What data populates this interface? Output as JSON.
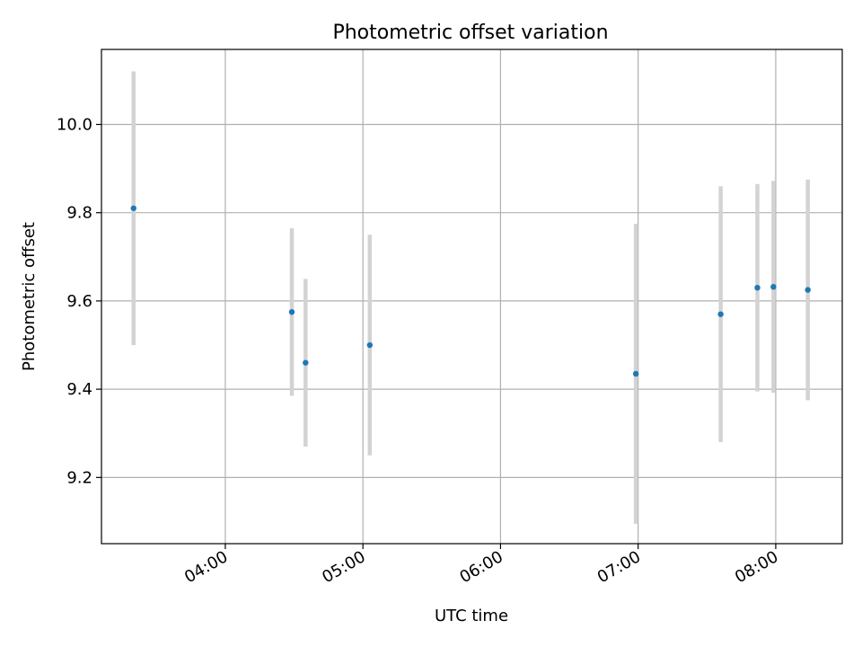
{
  "chart_data": {
    "type": "scatter",
    "title": "Photometric offset variation",
    "xlabel": "UTC time",
    "ylabel": "Photometric offset",
    "x_ticks": [
      "04:00",
      "05:00",
      "06:00",
      "07:00",
      "08:00"
    ],
    "y_ticks": [
      "9.2",
      "9.4",
      "9.6",
      "9.8",
      "10.0"
    ],
    "xlim": [
      "03:06",
      "08:29"
    ],
    "ylim": [
      9.05,
      10.17
    ],
    "grid": true,
    "colors": {
      "point": "#1f77b4",
      "error_bar": "#d3d3d3",
      "grid": "#b0b0b0",
      "axes": "#000000"
    },
    "series": [
      {
        "points": [
          {
            "x": "03:20",
            "y": 9.81,
            "err": 0.31
          },
          {
            "x": "04:29",
            "y": 9.575,
            "err": 0.19
          },
          {
            "x": "04:35",
            "y": 9.46,
            "err": 0.19
          },
          {
            "x": "05:03",
            "y": 9.5,
            "err": 0.25
          },
          {
            "x": "06:59",
            "y": 9.435,
            "err": 0.34
          },
          {
            "x": "07:36",
            "y": 9.57,
            "err": 0.29
          },
          {
            "x": "07:52",
            "y": 9.63,
            "err": 0.235
          },
          {
            "x": "07:59",
            "y": 9.632,
            "err": 0.24
          },
          {
            "x": "08:14",
            "y": 9.625,
            "err": 0.25
          }
        ]
      }
    ]
  }
}
